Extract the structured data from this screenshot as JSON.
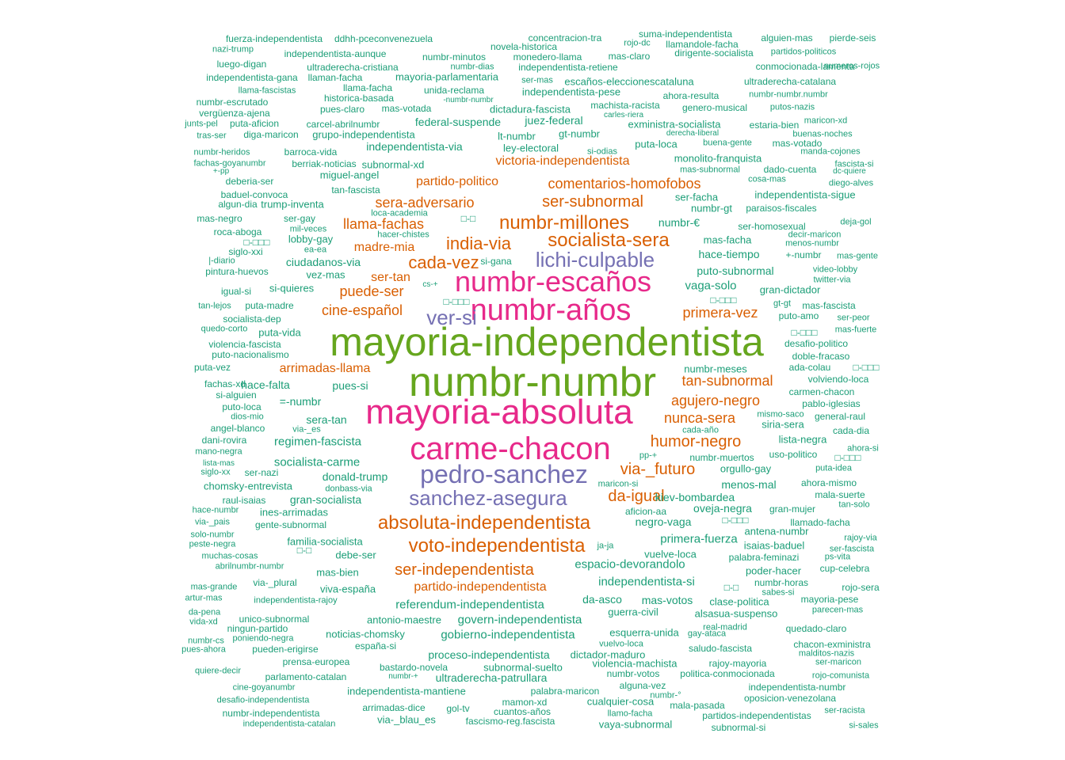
{
  "palette": {
    "green": "#1B9E77",
    "orange": "#D95F02",
    "purple": "#7570B3",
    "magenta": "#E7298A",
    "olive": "#66A61E"
  },
  "words": [
    {
      "t": "mayoria-independentista",
      "c": "olive"
    },
    {
      "t": "numbr-numbr",
      "c": "olive"
    },
    {
      "t": "mayoria-absoluta",
      "c": "magenta"
    },
    {
      "t": "carme-chacon",
      "c": "magenta"
    },
    {
      "t": "numbr-escaños",
      "c": "magenta"
    },
    {
      "t": "numbr-años",
      "c": "magenta"
    },
    {
      "t": "pedro-sanchez",
      "c": "purple"
    },
    {
      "t": "sanchez-asegura",
      "c": "purple"
    },
    {
      "t": "lichi-culpable",
      "c": "purple"
    },
    {
      "t": "ver-si",
      "c": "purple"
    },
    {
      "t": "absoluta-independentista",
      "c": "orange"
    },
    {
      "t": "voto-independentista",
      "c": "orange"
    },
    {
      "t": "socialista-sera",
      "c": "orange"
    },
    {
      "t": "numbr-millones",
      "c": "orange"
    },
    {
      "t": "india-via",
      "c": "orange"
    },
    {
      "t": "cada-vez",
      "c": "orange"
    },
    {
      "t": "ser-independentista",
      "c": "orange"
    },
    {
      "t": "via-_futuro",
      "c": "orange"
    },
    {
      "t": "da-igual",
      "c": "orange"
    },
    {
      "t": "humor-negro",
      "c": "orange"
    },
    {
      "t": "agujero-negro",
      "c": "orange"
    },
    {
      "t": "tan-subnormal",
      "c": "orange"
    },
    {
      "t": "nunca-sera",
      "c": "orange"
    },
    {
      "t": "primera-vez",
      "c": "orange"
    },
    {
      "t": "cine-español",
      "c": "orange"
    },
    {
      "t": "puede-ser",
      "c": "orange"
    },
    {
      "t": "ser-tan",
      "c": "orange"
    },
    {
      "t": "madre-mia",
      "c": "orange"
    },
    {
      "t": "llama-fachas",
      "c": "orange"
    },
    {
      "t": "sera-adversario",
      "c": "orange"
    },
    {
      "t": "ser-subnormal",
      "c": "orange"
    },
    {
      "t": "comentarios-homofobos",
      "c": "orange"
    },
    {
      "t": "partido-politico",
      "c": "orange"
    },
    {
      "t": "victoria-independentista",
      "c": "orange"
    },
    {
      "t": "arrimadas-llama",
      "c": "orange"
    },
    {
      "t": "partido-independentista",
      "c": "orange"
    },
    {
      "t": "fuerza-independentista",
      "c": "green"
    },
    {
      "t": "ddhh-pceconvenezuela",
      "c": "green"
    },
    {
      "t": "novela-historica",
      "c": "green"
    },
    {
      "t": "concentracion-tra",
      "c": "green"
    },
    {
      "t": "suma-independentista",
      "c": "green"
    },
    {
      "t": "alguien-mas",
      "c": "green"
    },
    {
      "t": "pierde-seis",
      "c": "green"
    },
    {
      "t": "nazi-trump",
      "c": "green"
    },
    {
      "t": "independentista-aunque",
      "c": "green"
    },
    {
      "t": "numbr-minutos",
      "c": "green"
    },
    {
      "t": "monedero-llama",
      "c": "green"
    },
    {
      "t": "rojo-dc",
      "c": "green"
    },
    {
      "t": "mas-claro",
      "c": "green"
    },
    {
      "t": "llamandole-facha",
      "c": "green"
    },
    {
      "t": "dirigente-socialista",
      "c": "green"
    },
    {
      "t": "partidos-politicos",
      "c": "green"
    },
    {
      "t": "luego-digan",
      "c": "green"
    },
    {
      "t": "ultraderecha-cristiana",
      "c": "green"
    },
    {
      "t": "numbr-dias",
      "c": "green"
    },
    {
      "t": "independentista-retiene",
      "c": "green"
    },
    {
      "t": "conmocionada-lamenta",
      "c": "green"
    },
    {
      "t": "numeros-rojos",
      "c": "green"
    },
    {
      "t": "independentista-gana",
      "c": "green"
    },
    {
      "t": "llaman-facha",
      "c": "green"
    },
    {
      "t": "mayoria-parlamentaria",
      "c": "green"
    },
    {
      "t": "ser-mas",
      "c": "green"
    },
    {
      "t": "escaños-eleccionescataluna",
      "c": "green"
    },
    {
      "t": "ultraderecha-catalana",
      "c": "green"
    },
    {
      "t": "llama-fascistas",
      "c": "green"
    },
    {
      "t": "llama-facha",
      "c": "green"
    },
    {
      "t": "unida-reclama",
      "c": "green"
    },
    {
      "t": "independentista-pese",
      "c": "green"
    },
    {
      "t": "ahora-resulta",
      "c": "green"
    },
    {
      "t": "numbr-numbr.numbr",
      "c": "green"
    },
    {
      "t": "numbr-escrutado",
      "c": "green"
    },
    {
      "t": "historica-basada",
      "c": "green"
    },
    {
      "t": "-numbr-numbr",
      "c": "green"
    },
    {
      "t": "machista-racista",
      "c": "green"
    },
    {
      "t": "genero-musical",
      "c": "green"
    },
    {
      "t": "putos-nazis",
      "c": "green"
    },
    {
      "t": "vergüenza-ajena",
      "c": "green"
    },
    {
      "t": "pues-claro",
      "c": "green"
    },
    {
      "t": "mas-votada",
      "c": "green"
    },
    {
      "t": "dictadura-fascista",
      "c": "green"
    },
    {
      "t": "carles-riera",
      "c": "green"
    },
    {
      "t": "junts-pel",
      "c": "green"
    },
    {
      "t": "puta-aficion",
      "c": "green"
    },
    {
      "t": "carcel-abrilnumbr",
      "c": "green"
    },
    {
      "t": "federal-suspende",
      "c": "green"
    },
    {
      "t": "juez-federal",
      "c": "green"
    },
    {
      "t": "exministra-socialista",
      "c": "green"
    },
    {
      "t": "estaria-bien",
      "c": "green"
    },
    {
      "t": "maricon-xd",
      "c": "green"
    },
    {
      "t": "tras-ser",
      "c": "green"
    },
    {
      "t": "diga-maricon",
      "c": "green"
    },
    {
      "t": "grupo-independentista",
      "c": "green"
    },
    {
      "t": "lt-numbr",
      "c": "green"
    },
    {
      "t": "gt-numbr",
      "c": "green"
    },
    {
      "t": "derecha-liberal",
      "c": "green"
    },
    {
      "t": "buenas-noches",
      "c": "green"
    },
    {
      "t": "independentista-via",
      "c": "green"
    },
    {
      "t": "ley-electoral",
      "c": "green"
    },
    {
      "t": "puta-loca",
      "c": "green"
    },
    {
      "t": "buena-gente",
      "c": "green"
    },
    {
      "t": "mas-votado",
      "c": "green"
    },
    {
      "t": "numbr-heridos",
      "c": "green"
    },
    {
      "t": "barroca-vida",
      "c": "green"
    },
    {
      "t": "si-odias",
      "c": "green"
    },
    {
      "t": "manda-cojones",
      "c": "green"
    },
    {
      "t": "fachas-goyanumbr",
      "c": "green"
    },
    {
      "t": "berriak-noticias",
      "c": "green"
    },
    {
      "t": "subnormal-xd",
      "c": "green"
    },
    {
      "t": "monolito-franquista",
      "c": "green"
    },
    {
      "t": "fascista-si",
      "c": "green"
    },
    {
      "t": "+-pp",
      "c": "green"
    },
    {
      "t": "miguel-angel",
      "c": "green"
    },
    {
      "t": "mas-subnormal",
      "c": "green"
    },
    {
      "t": "dado-cuenta",
      "c": "green"
    },
    {
      "t": "dc-quiere",
      "c": "green"
    },
    {
      "t": "deberia-ser",
      "c": "green"
    },
    {
      "t": "cosa-mas",
      "c": "green"
    },
    {
      "t": "diego-alves",
      "c": "green"
    },
    {
      "t": "baduel-convoca",
      "c": "green"
    },
    {
      "t": "tan-fascista",
      "c": "green"
    },
    {
      "t": "ser-facha",
      "c": "green"
    },
    {
      "t": "independentista-sigue",
      "c": "green"
    },
    {
      "t": "algun-dia",
      "c": "green"
    },
    {
      "t": "trump-inventa",
      "c": "green"
    },
    {
      "t": "numbr-gt",
      "c": "green"
    },
    {
      "t": "paraisos-fiscales",
      "c": "green"
    },
    {
      "t": "mas-negro",
      "c": "green"
    },
    {
      "t": "ser-gay",
      "c": "green"
    },
    {
      "t": "loca-academia",
      "c": "green"
    },
    {
      "t": "numbr-€",
      "c": "green"
    },
    {
      "t": "deja-gol",
      "c": "green"
    },
    {
      "t": "roca-aboga",
      "c": "green"
    },
    {
      "t": "mil-veces",
      "c": "green"
    },
    {
      "t": "ser-homosexual",
      "c": "green"
    },
    {
      "t": "lobby-gay",
      "c": "green"
    },
    {
      "t": "hacer-chistes",
      "c": "green"
    },
    {
      "t": "mas-facha",
      "c": "green"
    },
    {
      "t": "decir-maricon",
      "c": "green"
    },
    {
      "t": "siglo-xxi",
      "c": "green"
    },
    {
      "t": "ea-ea",
      "c": "green"
    },
    {
      "t": "menos-numbr",
      "c": "green"
    },
    {
      "t": "hace-tiempo",
      "c": "green"
    },
    {
      "t": "+-numbr",
      "c": "green"
    },
    {
      "t": "mas-gente",
      "c": "green"
    },
    {
      "t": "|-diario",
      "c": "green"
    },
    {
      "t": "ciudadanos-via",
      "c": "green"
    },
    {
      "t": "si-gana",
      "c": "green"
    },
    {
      "t": "pintura-huevos",
      "c": "green"
    },
    {
      "t": "vez-mas",
      "c": "green"
    },
    {
      "t": "puto-subnormal",
      "c": "green"
    },
    {
      "t": "video-lobby",
      "c": "green"
    },
    {
      "t": "twitter-via",
      "c": "green"
    },
    {
      "t": "igual-si",
      "c": "green"
    },
    {
      "t": "si-quieres",
      "c": "green"
    },
    {
      "t": "cs-+",
      "c": "green"
    },
    {
      "t": "vaga-solo",
      "c": "green"
    },
    {
      "t": "gran-dictador",
      "c": "green"
    },
    {
      "t": "tan-lejos",
      "c": "green"
    },
    {
      "t": "puta-madre",
      "c": "green"
    },
    {
      "t": "gt-gt",
      "c": "green"
    },
    {
      "t": "mas-fascista",
      "c": "green"
    },
    {
      "t": "socialista-dep",
      "c": "green"
    },
    {
      "t": "puto-amo",
      "c": "green"
    },
    {
      "t": "ser-peor",
      "c": "green"
    },
    {
      "t": "quedo-corto",
      "c": "green"
    },
    {
      "t": "puta-vida",
      "c": "green"
    },
    {
      "t": "mas-fuerte",
      "c": "green"
    },
    {
      "t": "violencia-fascista",
      "c": "green"
    },
    {
      "t": "desafio-politico",
      "c": "green"
    },
    {
      "t": "puto-nacionalismo",
      "c": "green"
    },
    {
      "t": "doble-fracaso",
      "c": "green"
    },
    {
      "t": "puta-vez",
      "c": "green"
    },
    {
      "t": "numbr-meses",
      "c": "green"
    },
    {
      "t": "ada-colau",
      "c": "green"
    },
    {
      "t": "fachas-xd",
      "c": "green"
    },
    {
      "t": "hace-falta",
      "c": "green"
    },
    {
      "t": "pues-si",
      "c": "green"
    },
    {
      "t": "volviendo-loca",
      "c": "green"
    },
    {
      "t": "si-alguien",
      "c": "green"
    },
    {
      "t": "carmen-chacon",
      "c": "green"
    },
    {
      "t": "=-numbr",
      "c": "green"
    },
    {
      "t": "pablo-iglesias",
      "c": "green"
    },
    {
      "t": "puto-loca",
      "c": "green"
    },
    {
      "t": "mismo-saco",
      "c": "green"
    },
    {
      "t": "general-raul",
      "c": "green"
    },
    {
      "t": "dios-mio",
      "c": "green"
    },
    {
      "t": "sera-tan",
      "c": "green"
    },
    {
      "t": "siria-sera",
      "c": "green"
    },
    {
      "t": "angel-blanco",
      "c": "green"
    },
    {
      "t": "via-_es",
      "c": "green"
    },
    {
      "t": "cada-año",
      "c": "green"
    },
    {
      "t": "cada-dia",
      "c": "green"
    },
    {
      "t": "dani-rovira",
      "c": "green"
    },
    {
      "t": "regimen-fascista",
      "c": "green"
    },
    {
      "t": "lista-negra",
      "c": "green"
    },
    {
      "t": "mano-negra",
      "c": "green"
    },
    {
      "t": "ahora-si",
      "c": "green"
    },
    {
      "t": "pp-+",
      "c": "green"
    },
    {
      "t": "numbr-muertos",
      "c": "green"
    },
    {
      "t": "uso-politico",
      "c": "green"
    },
    {
      "t": "lista-mas",
      "c": "green"
    },
    {
      "t": "socialista-carme",
      "c": "green"
    },
    {
      "t": "siglo-xx",
      "c": "green"
    },
    {
      "t": "ser-nazi",
      "c": "green"
    },
    {
      "t": "orgullo-gay",
      "c": "green"
    },
    {
      "t": "puta-idea",
      "c": "green"
    },
    {
      "t": "donald-trump",
      "c": "green"
    },
    {
      "t": "maricon-si",
      "c": "green"
    },
    {
      "t": "menos-mal",
      "c": "green"
    },
    {
      "t": "ahora-mismo",
      "c": "green"
    },
    {
      "t": "chomsky-entrevista",
      "c": "green"
    },
    {
      "t": "donbass-via",
      "c": "green"
    },
    {
      "t": "kiev-bombardea",
      "c": "green"
    },
    {
      "t": "mala-suerte",
      "c": "green"
    },
    {
      "t": "raul-isaias",
      "c": "green"
    },
    {
      "t": "gran-socialista",
      "c": "green"
    },
    {
      "t": "oveja-negra",
      "c": "green"
    },
    {
      "t": "gran-mujer",
      "c": "green"
    },
    {
      "t": "tan-solo",
      "c": "green"
    },
    {
      "t": "hace-numbr",
      "c": "green"
    },
    {
      "t": "ines-arrimadas",
      "c": "green"
    },
    {
      "t": "aficion-aa",
      "c": "green"
    },
    {
      "t": "negro-vaga",
      "c": "green"
    },
    {
      "t": "llamado-facha",
      "c": "green"
    },
    {
      "t": "via-_pais",
      "c": "green"
    },
    {
      "t": "gente-subnormal",
      "c": "green"
    },
    {
      "t": "antena-numbr",
      "c": "green"
    },
    {
      "t": "solo-numbr",
      "c": "green"
    },
    {
      "t": "rajoy-via",
      "c": "green"
    },
    {
      "t": "familia-socialista",
      "c": "green"
    },
    {
      "t": "primera-fuerza",
      "c": "green"
    },
    {
      "t": "peste-negra",
      "c": "green"
    },
    {
      "t": "ja-ja",
      "c": "green"
    },
    {
      "t": "isaias-baduel",
      "c": "green"
    },
    {
      "t": "ser-fascista",
      "c": "green"
    },
    {
      "t": "muchas-cosas",
      "c": "green"
    },
    {
      "t": "debe-ser",
      "c": "green"
    },
    {
      "t": "vuelve-loca",
      "c": "green"
    },
    {
      "t": "palabra-feminazi",
      "c": "green"
    },
    {
      "t": "ps-vita",
      "c": "green"
    },
    {
      "t": "abrilnumbr-numbr",
      "c": "green"
    },
    {
      "t": "espacio-devorandolo",
      "c": "green"
    },
    {
      "t": "mas-bien",
      "c": "green"
    },
    {
      "t": "poder-hacer",
      "c": "green"
    },
    {
      "t": "cup-celebra",
      "c": "green"
    },
    {
      "t": "independentista-si",
      "c": "green"
    },
    {
      "t": "numbr-horas",
      "c": "green"
    },
    {
      "t": "mas-grande",
      "c": "green"
    },
    {
      "t": "via-_plural",
      "c": "green"
    },
    {
      "t": "viva-españa",
      "c": "green"
    },
    {
      "t": "sabes-si",
      "c": "green"
    },
    {
      "t": "rojo-sera",
      "c": "green"
    },
    {
      "t": "artur-mas",
      "c": "green"
    },
    {
      "t": "da-asco",
      "c": "green"
    },
    {
      "t": "mas-votos",
      "c": "green"
    },
    {
      "t": "clase-politica",
      "c": "green"
    },
    {
      "t": "mayoria-pese",
      "c": "green"
    },
    {
      "t": "independentista-rajoy",
      "c": "green"
    },
    {
      "t": "referendum-independentista",
      "c": "green"
    },
    {
      "t": "guerra-civil",
      "c": "green"
    },
    {
      "t": "alsasua-suspenso",
      "c": "green"
    },
    {
      "t": "parecen-mas",
      "c": "green"
    },
    {
      "t": "da-pena",
      "c": "green"
    },
    {
      "t": "unico-subnormal",
      "c": "green"
    },
    {
      "t": "antonio-maestre",
      "c": "green"
    },
    {
      "t": "govern-independentista",
      "c": "green"
    },
    {
      "t": "vida-xd",
      "c": "green"
    },
    {
      "t": "ningun-partido",
      "c": "green"
    },
    {
      "t": "real-madrid",
      "c": "green"
    },
    {
      "t": "quedado-claro",
      "c": "green"
    },
    {
      "t": "noticias-chomsky",
      "c": "green"
    },
    {
      "t": "gobierno-independentista",
      "c": "green"
    },
    {
      "t": "esquerra-unida",
      "c": "green"
    },
    {
      "t": "gay-ataca",
      "c": "green"
    },
    {
      "t": "numbr-cs",
      "c": "green"
    },
    {
      "t": "poniendo-negra",
      "c": "green"
    },
    {
      "t": "vuelvo-loca",
      "c": "green"
    },
    {
      "t": "chacon-exministra",
      "c": "green"
    },
    {
      "t": "pues-ahora",
      "c": "green"
    },
    {
      "t": "pueden-erigirse",
      "c": "green"
    },
    {
      "t": "españa-si",
      "c": "green"
    },
    {
      "t": "saludo-fascista",
      "c": "green"
    },
    {
      "t": "malditos-nazis",
      "c": "green"
    },
    {
      "t": "proceso-independentista",
      "c": "green"
    },
    {
      "t": "dictador-maduro",
      "c": "green"
    },
    {
      "t": "prensa-europea",
      "c": "green"
    },
    {
      "t": "violencia-machista",
      "c": "green"
    },
    {
      "t": "rajoy-mayoria",
      "c": "green"
    },
    {
      "t": "ser-maricon",
      "c": "green"
    },
    {
      "t": "quiere-decir",
      "c": "green"
    },
    {
      "t": "bastardo-novela",
      "c": "green"
    },
    {
      "t": "subnormal-suelto",
      "c": "green"
    },
    {
      "t": "numbr-votos",
      "c": "green"
    },
    {
      "t": "politica-conmocionada",
      "c": "green"
    },
    {
      "t": "parlamento-catalan",
      "c": "green"
    },
    {
      "t": "numbr-+",
      "c": "green"
    },
    {
      "t": "ultraderecha-patrullara",
      "c": "green"
    },
    {
      "t": "rojo-comunista",
      "c": "green"
    },
    {
      "t": "alguna-vez",
      "c": "green"
    },
    {
      "t": "cine-goyanumbr",
      "c": "green"
    },
    {
      "t": "independentista-mantiene",
      "c": "green"
    },
    {
      "t": "palabra-maricon",
      "c": "green"
    },
    {
      "t": "independentista-numbr",
      "c": "green"
    },
    {
      "t": "numbr-°",
      "c": "green"
    },
    {
      "t": "desafio-independentista",
      "c": "green"
    },
    {
      "t": "mamon-xd",
      "c": "green"
    },
    {
      "t": "cualquier-cosa",
      "c": "green"
    },
    {
      "t": "oposicion-venezolana",
      "c": "green"
    },
    {
      "t": "mala-pasada",
      "c": "green"
    },
    {
      "t": "arrimadas-dice",
      "c": "green"
    },
    {
      "t": "gol-tv",
      "c": "green"
    },
    {
      "t": "cuantos-años",
      "c": "green"
    },
    {
      "t": "numbr-independentista",
      "c": "green"
    },
    {
      "t": "llamo-facha",
      "c": "green"
    },
    {
      "t": "ser-racista",
      "c": "green"
    },
    {
      "t": "partidos-independentistas",
      "c": "green"
    },
    {
      "t": "via-_blau_es",
      "c": "green"
    },
    {
      "t": "fascismo-reg.fascista",
      "c": "green"
    },
    {
      "t": "vaya-subnormal",
      "c": "green"
    },
    {
      "t": "independentista-catalan",
      "c": "green"
    },
    {
      "t": "subnormal-si",
      "c": "green"
    },
    {
      "t": "si-sales",
      "c": "green"
    },
    {
      "t": "□-□",
      "c": "green"
    },
    {
      "t": "□-□□□",
      "c": "green"
    },
    {
      "t": "□-□□□",
      "c": "green"
    },
    {
      "t": "□-□□□",
      "c": "green"
    },
    {
      "t": "□-□□□",
      "c": "green"
    },
    {
      "t": "□-□□□",
      "c": "green"
    },
    {
      "t": "□-□□□",
      "c": "green"
    },
    {
      "t": "□-□",
      "c": "green"
    },
    {
      "t": "□-□",
      "c": "green"
    },
    {
      "t": "□-□□□",
      "c": "green"
    }
  ]
}
